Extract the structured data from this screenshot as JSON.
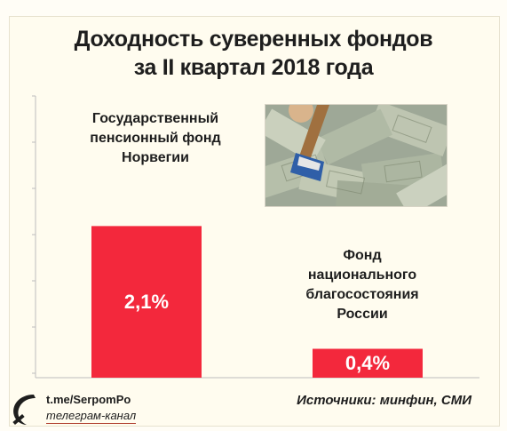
{
  "header": {
    "title_line1": "Доходность суверенных фондов",
    "title_line2": "за II квартал 2018 года"
  },
  "chart_data": {
    "type": "bar",
    "title": "Доходность суверенных фондов за II квартал 2018 года",
    "categories": [
      "Государственный пенсионный фонд Норвегии",
      "Фонд национального благосостояния России"
    ],
    "category_lines": [
      [
        "Государственный",
        "пенсионный фонд",
        "Норвегии"
      ],
      [
        "Фонд",
        "национального",
        "благосостояния",
        "России"
      ]
    ],
    "values": [
      2.1,
      0.4
    ],
    "value_labels": [
      "2,1%",
      "0,4%"
    ],
    "ylim": [
      0,
      4
    ],
    "grid": false,
    "legend": "none"
  },
  "source": "Источники: минфин, СМИ",
  "brand": {
    "url": "t.me/SerpomPo",
    "subtitle": "телеграм-канал"
  },
  "photo": {
    "icon": "money-pile-photo"
  },
  "colors": {
    "bar": "#f3283c",
    "text": "#1e1e1e",
    "value_text": "#ffffff",
    "background": "#fffcef",
    "axis": "#bdbdbd"
  }
}
